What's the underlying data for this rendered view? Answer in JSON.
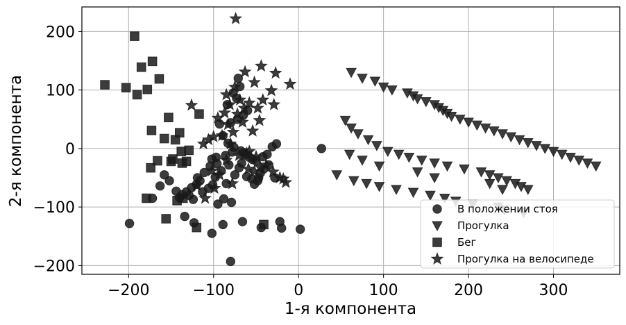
{
  "chart_data": {
    "type": "scatter",
    "xlabel": "1-я компонента",
    "ylabel": "2-я компонента",
    "xlim": [
      -255,
      378
    ],
    "ylim": [
      -215,
      242
    ],
    "xticks": [
      -200,
      -100,
      0,
      100,
      200,
      300
    ],
    "yticks": [
      -200,
      -100,
      0,
      100,
      200
    ],
    "xtick_labels": [
      "−200",
      "−100",
      "0",
      "100",
      "200",
      "300"
    ],
    "ytick_labels": [
      "−200",
      "−100",
      "0",
      "100",
      "200"
    ],
    "grid": true,
    "legend_position": "lower-right",
    "marker_color": "#1a1a1a",
    "series": [
      {
        "name": "В положении стоя",
        "marker": "circle",
        "x": [
          -71,
          -69,
          -77,
          -84,
          -73,
          -60,
          -65,
          -72,
          -80,
          -93,
          -89,
          -83,
          -76,
          -64,
          -58,
          -67,
          -96,
          -91,
          -102,
          -82,
          -70,
          -75,
          -61,
          -55,
          -52,
          -48,
          -47,
          -45,
          -41,
          -35,
          -28,
          -26,
          -31,
          -37,
          -42,
          -50,
          -54,
          -63,
          -68,
          -78,
          -86,
          -97,
          -104,
          -111,
          -116,
          -120,
          -126,
          -132,
          -137,
          -140,
          -144,
          -152,
          -158,
          -163,
          -172,
          -101,
          -106,
          -113,
          -124,
          -129,
          -119,
          -98,
          -85,
          -88,
          -95,
          -79,
          -66,
          -44,
          -22,
          -20,
          27,
          2,
          -80,
          -89,
          -102,
          -199,
          -134,
          -123
        ],
        "y": [
          120,
          106,
          95,
          75,
          86,
          65,
          57,
          50,
          44,
          42,
          22,
          9,
          2,
          -7,
          -15,
          -25,
          -26,
          -38,
          -18,
          -28,
          -33,
          -45,
          -48,
          -52,
          -61,
          -55,
          -50,
          -42,
          -35,
          -28,
          -50,
          8,
          3,
          -10,
          -14,
          -21,
          -19,
          -11,
          -4,
          -6,
          -12,
          -15,
          -30,
          -41,
          -55,
          -61,
          -67,
          -74,
          -79,
          -84,
          -73,
          -55,
          -45,
          -64,
          -85,
          -62,
          -68,
          -74,
          -87,
          -80,
          -50,
          -49,
          -60,
          -86,
          -95,
          -92,
          -125,
          -135,
          -125,
          -136,
          0,
          -138,
          -193,
          -130,
          -145,
          -128,
          -116,
          -127
        ]
      },
      {
        "name": "Прогулка",
        "marker": "triangle-down",
        "x": [
          62,
          75,
          90,
          100,
          110,
          128,
          135,
          140,
          150,
          160,
          165,
          170,
          175,
          180,
          190,
          200,
          210,
          220,
          230,
          240,
          250,
          260,
          270,
          280,
          290,
          300,
          310,
          320,
          330,
          340,
          350,
          55,
          62,
          70,
          82,
          92,
          105,
          118,
          130,
          145,
          160,
          175,
          195,
          215,
          225,
          235,
          245,
          255,
          262,
          270,
          45,
          65,
          80,
          95,
          115,
          135,
          155,
          172,
          185,
          205,
          235,
          242,
          265,
          60,
          75,
          95,
          140,
          160,
          225,
          240
        ],
        "y": [
          130,
          120,
          115,
          105,
          100,
          95,
          90,
          85,
          80,
          75,
          70,
          65,
          60,
          55,
          50,
          45,
          40,
          35,
          30,
          25,
          20,
          15,
          10,
          5,
          0,
          -5,
          -10,
          -15,
          -20,
          -25,
          -30,
          48,
          35,
          25,
          15,
          5,
          -5,
          -10,
          -15,
          -20,
          -25,
          -30,
          -35,
          -40,
          -45,
          -50,
          -55,
          -60,
          -65,
          -70,
          -45,
          -55,
          -60,
          -65,
          -70,
          -75,
          -80,
          -85,
          -90,
          -95,
          -100,
          -105,
          -110,
          -10,
          -20,
          -30,
          -40,
          -50,
          -60,
          -70
        ],
        "note_values_truncated": false
      },
      {
        "name": "Бег",
        "marker": "square",
        "x": [
          -193,
          -228,
          -203,
          -172,
          -185,
          -164,
          -178,
          -190,
          -153,
          -158,
          -145,
          -140,
          -174,
          -166,
          -150,
          -132,
          -137,
          -148,
          -138,
          -129,
          -117,
          -136,
          -143,
          -173,
          -179,
          -156,
          -120,
          -41
        ],
        "y": [
          192,
          109,
          104,
          149,
          139,
          119,
          101,
          92,
          53,
          17,
          15,
          27,
          -33,
          -21,
          -22,
          -22,
          -25,
          -18,
          -5,
          -3,
          59,
          -85,
          -89,
          31,
          -85,
          -120,
          -135,
          -130
        ]
      },
      {
        "name": "Прогулка на велосипеде",
        "marker": "star",
        "x": [
          -74,
          -44,
          -63,
          -27,
          -10,
          -52,
          -75,
          -85,
          -32,
          -42,
          -69,
          -58,
          -81,
          -64,
          -48,
          -72,
          -87,
          -95,
          -29,
          -46,
          -66,
          -83,
          -54,
          -77,
          -90,
          -100,
          -106,
          -112,
          -80,
          -61,
          -50,
          -38,
          -30,
          -22,
          -70,
          -85,
          -59,
          -126,
          -120,
          -45,
          -52,
          -15,
          -18,
          -58,
          -78,
          -93,
          -102,
          -99,
          -110
        ],
        "y": [
          222,
          141,
          131,
          129,
          110,
          113,
          105,
          92,
          99,
          83,
          83,
          78,
          75,
          69,
          69,
          59,
          61,
          52,
          75,
          48,
          45,
          41,
          30,
          28,
          22,
          20,
          15,
          8,
          8,
          -8,
          -14,
          -28,
          -40,
          -50,
          -12,
          -20,
          -35,
          74,
          -63,
          -32,
          -39,
          -58,
          -52,
          -5,
          -60,
          -45,
          -38,
          -68,
          -85
        ]
      }
    ]
  }
}
